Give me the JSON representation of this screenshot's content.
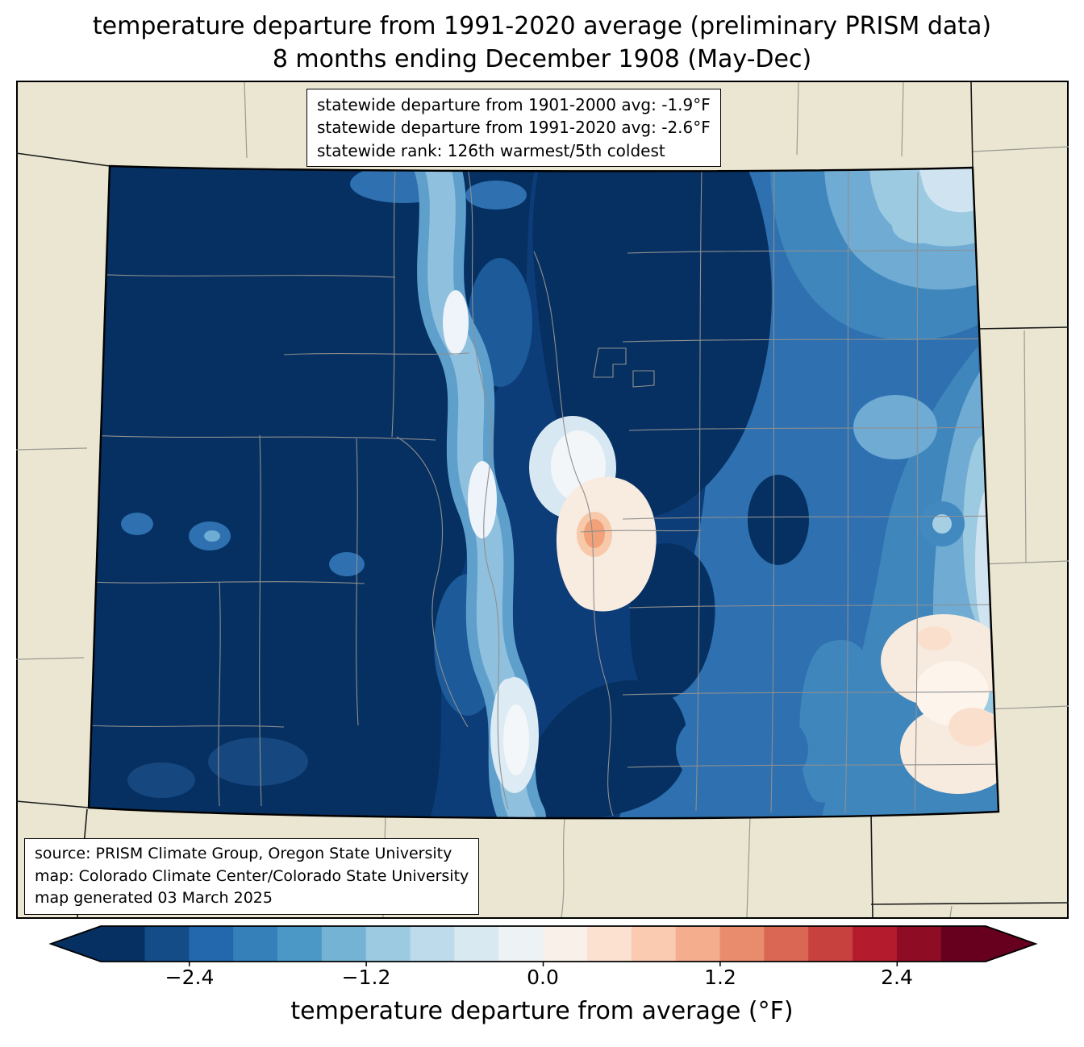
{
  "title": {
    "line1": "temperature departure from 1991-2020 average (preliminary PRISM data)",
    "line2": "8 months ending December 1908 (May-Dec)"
  },
  "stats_box": {
    "line1": "statewide departure from 1901-2000 avg: -1.9°F",
    "line2": "statewide departure from 1991-2020 avg: -2.6°F",
    "line3": "statewide rank: 126th warmest/5th coldest"
  },
  "source_box": {
    "line1": "source: PRISM Climate Group, Oregon State University",
    "line2": "map: Colorado Climate Center/Colorado State University",
    "line3": "map generated 03 March 2025"
  },
  "colorbar": {
    "label": "temperature departure from average (°F)",
    "range_min": -3.0,
    "range_max": 3.0,
    "bin_width": 0.3,
    "ticks": [
      {
        "value": -2.4,
        "label": "−2.4",
        "pos": 0.1
      },
      {
        "value": -1.2,
        "label": "−1.2",
        "pos": 0.3
      },
      {
        "value": 0.0,
        "label": "0.0",
        "pos": 0.5
      },
      {
        "value": 1.2,
        "label": "1.2",
        "pos": 0.7
      },
      {
        "value": 2.4,
        "label": "2.4",
        "pos": 0.9
      }
    ],
    "segment_colors": [
      "#053061",
      "#144c88",
      "#2368ad",
      "#3580b9",
      "#4b98c6",
      "#75b3d4",
      "#9ccae1",
      "#bddbea",
      "#d9e9f2",
      "#edf2f5",
      "#f9f0ea",
      "#fce1d1",
      "#facab1",
      "#f5ae8d",
      "#e98c6e",
      "#d96753",
      "#c7423f",
      "#b41c2d",
      "#8e0d25",
      "#67001f"
    ],
    "under_color": "#053061",
    "over_color": "#67001f"
  },
  "map": {
    "background_color": "#eae6d2",
    "dominant_anomaly_color": "#053061"
  }
}
